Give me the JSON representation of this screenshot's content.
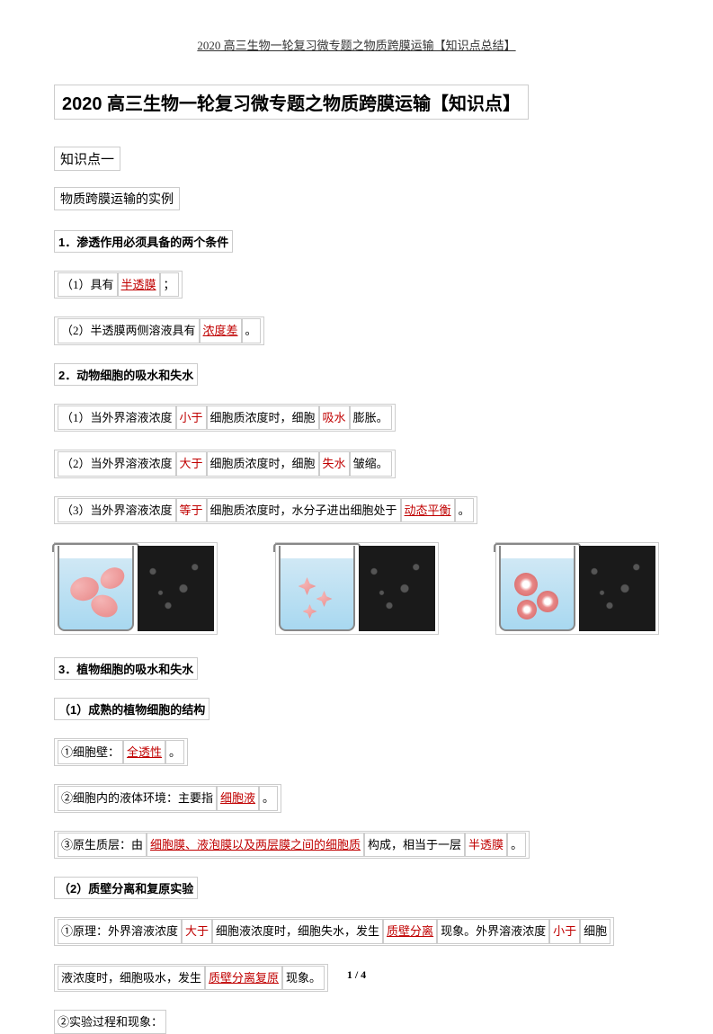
{
  "header": "2020 高三生物一轮复习微专题之物质跨膜运输【知识点总结】",
  "mainTitle": "2020 高三生物一轮复习微专题之物质跨膜运输【知识点】",
  "sections": {
    "knowledge1": "知识点一",
    "subtitle1": "物质跨膜运输的实例"
  },
  "headings": {
    "h1": "1．渗透作用必须具备的两个条件",
    "h2": "2．动物细胞的吸水和失水",
    "h3": "3．植物细胞的吸水和失水",
    "h3_1": "（1）成熟的植物细胞的结构",
    "h3_2": "（2）质壁分离和复原实验"
  },
  "items": {
    "c1_1a": "（1）具有",
    "c1_1b": "半透膜",
    "c1_1c": "；",
    "c1_2a": "（2）半透膜两侧溶液具有",
    "c1_2b": " 浓度差 ",
    "c1_2c": "。",
    "c2_1a": "（1）当外界溶液浓度",
    "c2_1b": " 小于 ",
    "c2_1c": "细胞质浓度时，细胞",
    "c2_1d": " 吸水 ",
    "c2_1e": "膨胀。",
    "c2_2a": "（2）当外界溶液浓度",
    "c2_2b": " 大于 ",
    "c2_2c": "细胞质浓度时，细胞",
    "c2_2d": " 失水 ",
    "c2_2e": "皱缩。",
    "c2_3a": "（3）当外界溶液浓度",
    "c2_3b": " 等于 ",
    "c2_3c": "细胞质浓度时，水分子进出细胞处于",
    "c2_3d": " 动态平衡 ",
    "c2_3e": "。",
    "c3_1a": "①细胞壁：",
    "c3_1b": " 全透性 ",
    "c3_1c": "。",
    "c3_2a": "②细胞内的液体环境：主要指",
    "c3_2b": " 细胞液 ",
    "c3_2c": "。",
    "c3_3a": "③原生质层：由",
    "c3_3b": " 细胞膜、液泡膜以及两层膜之间的细胞质 ",
    "c3_3c": "构成，相当于一层",
    "c3_3d": " 半透膜",
    "c3_3e": "。",
    "c4_1a": "①原理：外界溶液浓度",
    "c4_1b": " 大于 ",
    "c4_1c": "细胞液浓度时，细胞失水，发生",
    "c4_1d": " 质壁分离 ",
    "c4_1e": "现象。外界溶液浓度",
    "c4_1f": " 小于 ",
    "c4_1g": "细胞",
    "c4_2a": "液浓度时，细胞吸水，发生",
    "c4_2b": " 质壁分离复原 ",
    "c4_2c": "现象。",
    "c4_3": "②实验过程和现象："
  },
  "pageNum": "1 / 4",
  "colors": {
    "red": "#c00000",
    "border": "#cccccc",
    "text": "#333333"
  }
}
